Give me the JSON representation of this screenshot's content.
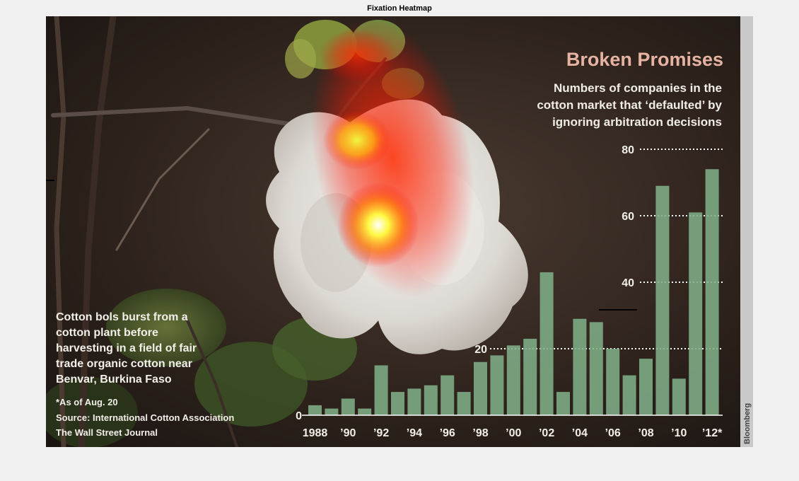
{
  "figure": {
    "title": "Fixation Heatmap"
  },
  "image": {
    "headline": "Broken Promises",
    "subtitle_lines": [
      "Numbers of companies in the",
      "cotton market that  ‘defaulted’ by",
      "ignoring arbitration decisions"
    ],
    "caption_lines": [
      "Cotton bols burst from a",
      "cotton plant before",
      "harvesting in a field of fair",
      "trade organic cotton near",
      "Benvar, Burkina Faso"
    ],
    "note": "*As of Aug. 20",
    "source": "Source: International Cotton Association",
    "publisher": "The Wall Street Journal",
    "credit": "Bloomberg"
  },
  "chart_data": {
    "type": "bar",
    "title": "Broken Promises",
    "subtitle": "Numbers of companies in the cotton market that ‘defaulted’ by ignoring arbitration decisions",
    "categories": [
      "1988",
      "1989",
      "1990",
      "1991",
      "1992",
      "1993",
      "1994",
      "1995",
      "1996",
      "1997",
      "1998",
      "1999",
      "2000",
      "2001",
      "2002",
      "2003",
      "2004",
      "2005",
      "2006",
      "2007",
      "2008",
      "2009",
      "2010",
      "2011",
      "2012"
    ],
    "values": [
      3,
      2,
      5,
      2,
      15,
      7,
      8,
      9,
      12,
      7,
      16,
      18,
      21,
      23,
      43,
      7,
      29,
      28,
      20,
      12,
      17,
      69,
      11,
      61,
      74
    ],
    "x_tick_labels": [
      "1988",
      "’90",
      "’92",
      "’94",
      "’96",
      "’98",
      "’00",
      "’02",
      "’04",
      "’06",
      "’08",
      "’10",
      "’12*"
    ],
    "y_ticks": [
      "0",
      "20",
      "40",
      "60",
      "80"
    ],
    "ylim": [
      0,
      80
    ],
    "grid": "dotted at 20, 40, 60, 80",
    "bar_color": "#7fae88"
  },
  "heatmap": {
    "colors": [
      "#ff0000",
      "#ffff00",
      "#ffffff"
    ]
  }
}
